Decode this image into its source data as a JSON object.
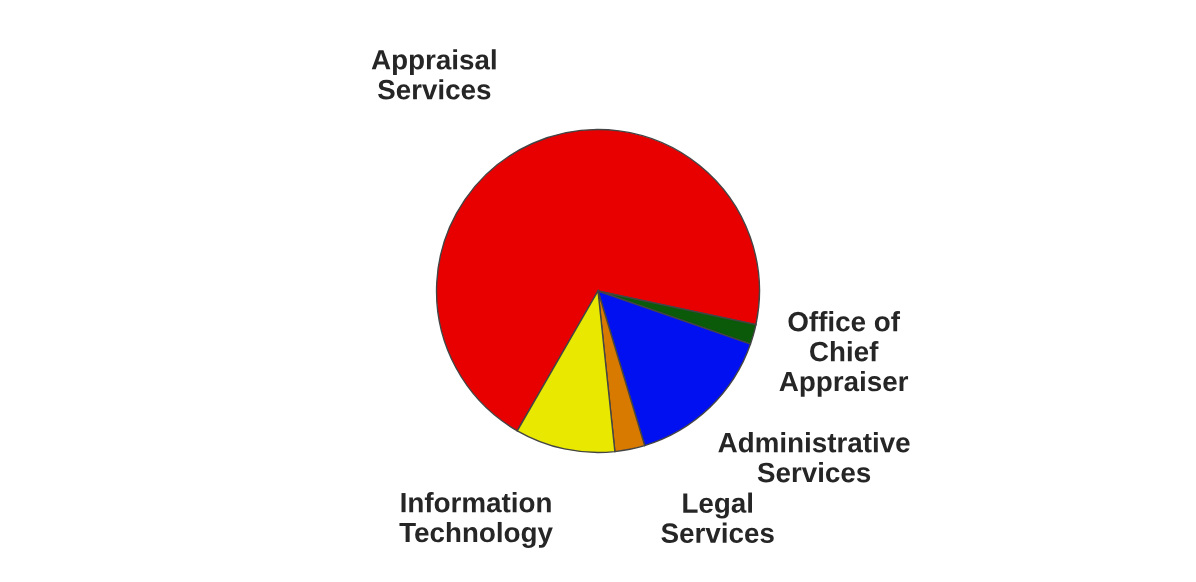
{
  "chart_data": {
    "type": "pie",
    "categories": [
      "Appraisal\nServices",
      "Office of\nChief\nAppraiser",
      "Administrative\nServices",
      "Legal\nServices",
      "Information\nTechnology"
    ],
    "values": [
      70,
      2,
      15,
      3,
      10
    ],
    "colors": [
      "#e80000",
      "#0a5a0a",
      "#0010f0",
      "#d87a00",
      "#e8e800"
    ]
  }
}
